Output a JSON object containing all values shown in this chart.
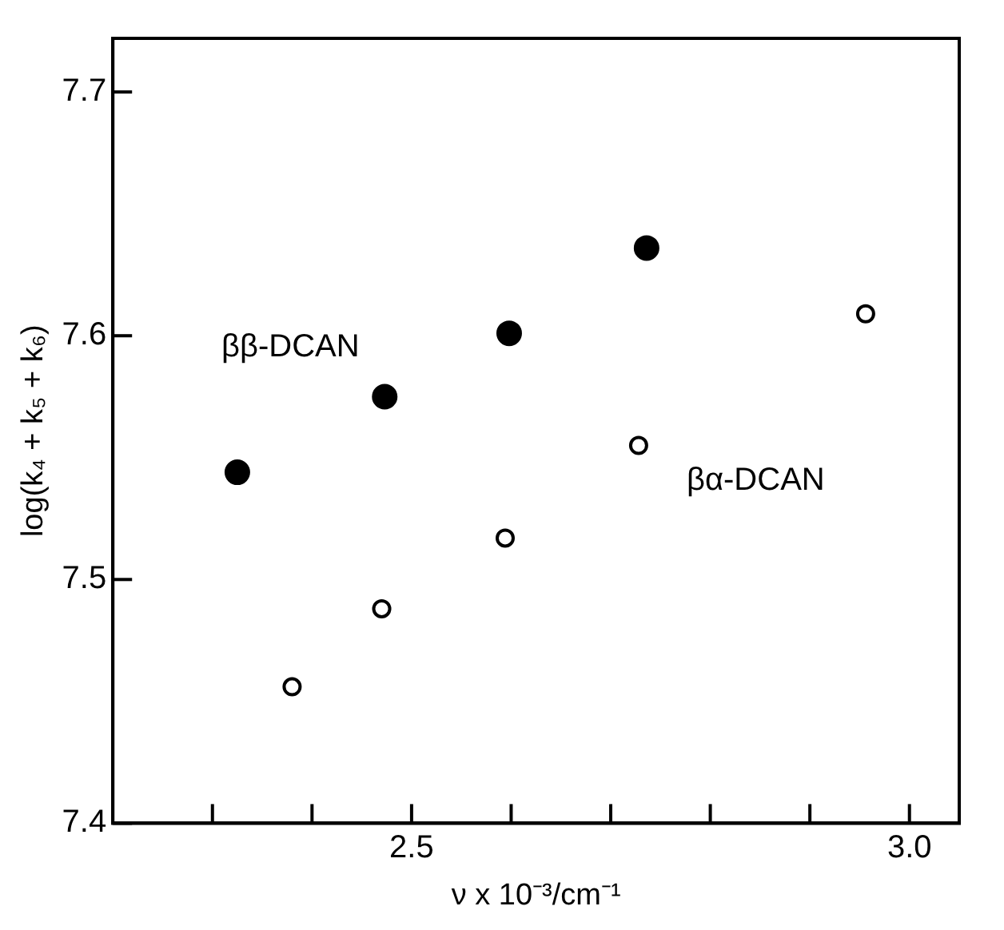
{
  "chart_data": {
    "type": "scatter",
    "xlabel": "ν x 10⁻³/cm⁻¹",
    "ylabel": "log(k₄ + k₅ + k₆)",
    "xlim": [
      2.2,
      3.05
    ],
    "ylim": [
      7.4,
      7.722
    ],
    "xticks": [
      {
        "value": 2.3,
        "label": null
      },
      {
        "value": 2.4,
        "label": null
      },
      2.5,
      {
        "value": 2.6,
        "label": null
      },
      {
        "value": 2.7,
        "label": null
      },
      {
        "value": 2.8,
        "label": null
      },
      {
        "value": 2.9,
        "label": null
      },
      {
        "value": 3.0,
        "label": "3.0"
      }
    ],
    "yticks": [
      7.4,
      7.5,
      7.6,
      7.7
    ],
    "grid": false,
    "legend": false,
    "marker": "circle",
    "series": [
      {
        "name": "ββ-DCAN",
        "color": "#000000",
        "x": [
          2.325,
          2.473,
          2.598,
          2.736
        ],
        "values": [
          7.544,
          7.575,
          7.601,
          7.636
        ]
      },
      {
        "name": "βα-DCAN",
        "color": "#000000",
        "x": [
          2.38,
          2.47,
          2.594,
          2.728,
          2.956
        ],
        "values": [
          7.456,
          7.488,
          7.517,
          7.555,
          7.609
        ]
      }
    ]
  }
}
